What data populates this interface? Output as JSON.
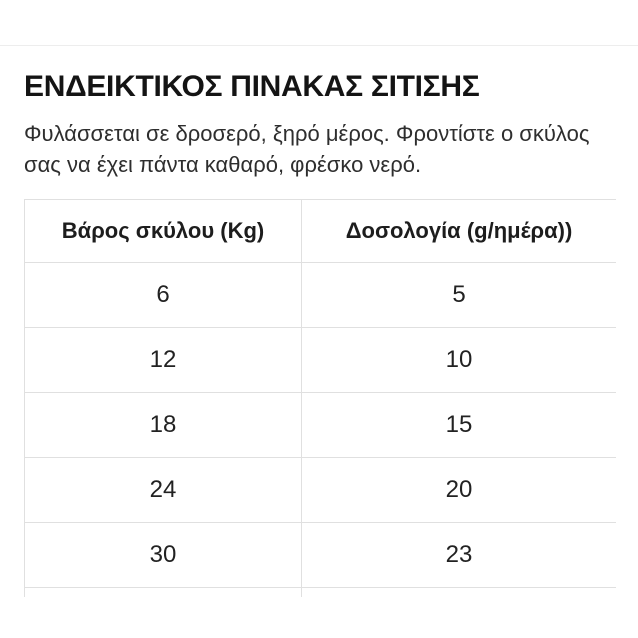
{
  "page": {
    "title": "ΕΝΔΕΙΚΤΙΚΟΣ ΠΙΝΑΚΑΣ ΣΙΤΙΣΗΣ",
    "note_lines": [
      "Φυλάσσεται σε δροσερό, ξηρό μέρος. Φροντίστε ο σκύλος",
      "σας να έχει πάντα καθαρό, φρέσκο νερό."
    ]
  },
  "feeding_table": {
    "columns": [
      "Βάρος σκύλου (Kg)",
      "Δοσολογία (g/ημέρα))"
    ],
    "rows": [
      {
        "weight": "6",
        "dosage": "5"
      },
      {
        "weight": "12",
        "dosage": "10"
      },
      {
        "weight": "18",
        "dosage": "15"
      },
      {
        "weight": "24",
        "dosage": "20"
      },
      {
        "weight": "30",
        "dosage": "23"
      }
    ]
  },
  "colors": {
    "background": "#ffffff",
    "divider": "#ededed",
    "table_border": "#e0e0e0",
    "title_text": "#141414",
    "body_text": "#2e2e2e"
  }
}
